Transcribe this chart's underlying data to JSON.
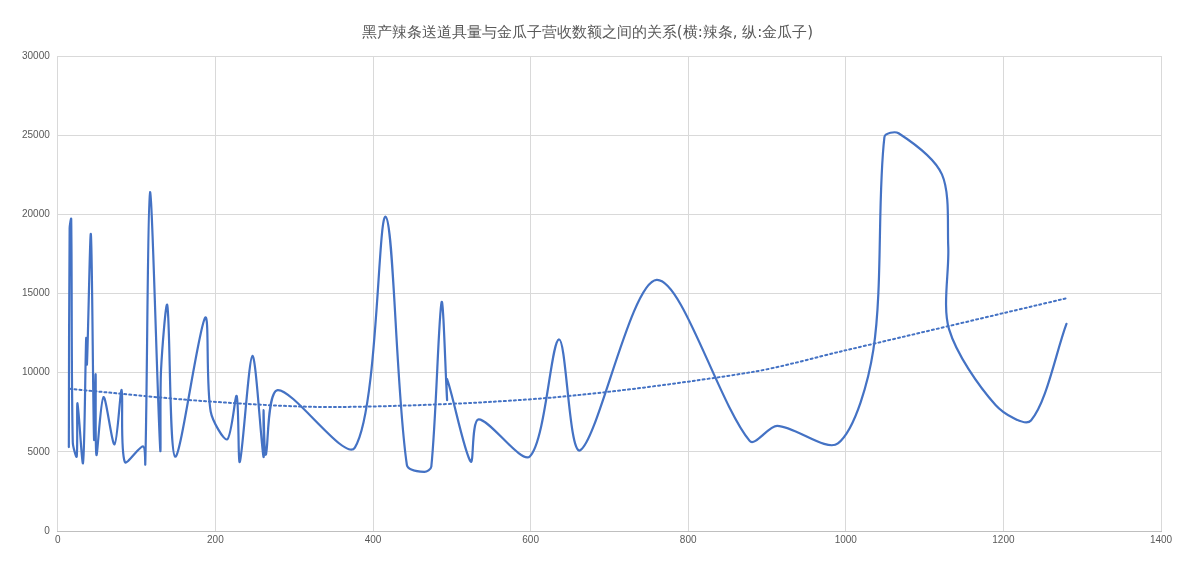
{
  "chart_data": {
    "type": "line",
    "title": "黑产辣条送道具量与金瓜子营收数额之间的关系(横:辣条, 纵:金瓜子)",
    "xlim": [
      0,
      1400
    ],
    "xticks": [
      0,
      200,
      400,
      600,
      800,
      1000,
      1200,
      1400
    ],
    "ylim": [
      0,
      30000
    ],
    "yticks": [
      0,
      5000,
      10000,
      15000,
      20000,
      25000,
      30000
    ],
    "grid": true,
    "marker": "none",
    "series": [
      {
        "color": "#4472c4",
        "line_style": "solid",
        "x": [
          14,
          15,
          17,
          19,
          24,
          25,
          32,
          36,
          37,
          42,
          46,
          48,
          49,
          58,
          72,
          81,
          85,
          108,
          111,
          117,
          130,
          131,
          139,
          149,
          187,
          194,
          215,
          227,
          231,
          247,
          261,
          261,
          264,
          279,
          377,
          416,
          443,
          465,
          474,
          487,
          494,
          494,
          524,
          534,
          599,
          636,
          663,
          760,
          878,
          913,
          990,
          1035,
          1049,
          1067,
          1122,
          1130,
          1131,
          1190,
          1235,
          1280
        ],
        "values": [
          5300,
          19100,
          19700,
          5600,
          4700,
          8070,
          4300,
          12170,
          10540,
          18740,
          5800,
          9900,
          4800,
          8460,
          5470,
          8900,
          4360,
          5340,
          4230,
          21400,
          5140,
          10150,
          14250,
          4690,
          13470,
          7550,
          5790,
          8530,
          4360,
          11060,
          4690,
          7630,
          4820,
          8900,
          5270,
          19850,
          4170,
          3730,
          4060,
          14450,
          8290,
          9590,
          4380,
          7050,
          4710,
          12100,
          5100,
          15860,
          5690,
          6640,
          5530,
          11450,
          24880,
          25120,
          22520,
          17960,
          12750,
          7960,
          6980,
          13080
        ]
      },
      {
        "color": "#4472c4",
        "line_style": "dotted",
        "x": [
          15,
          187,
          354,
          623,
          879,
          998,
          1281
        ],
        "values": [
          8980,
          8200,
          7830,
          8410,
          10020,
          11390,
          14710
        ]
      }
    ]
  }
}
